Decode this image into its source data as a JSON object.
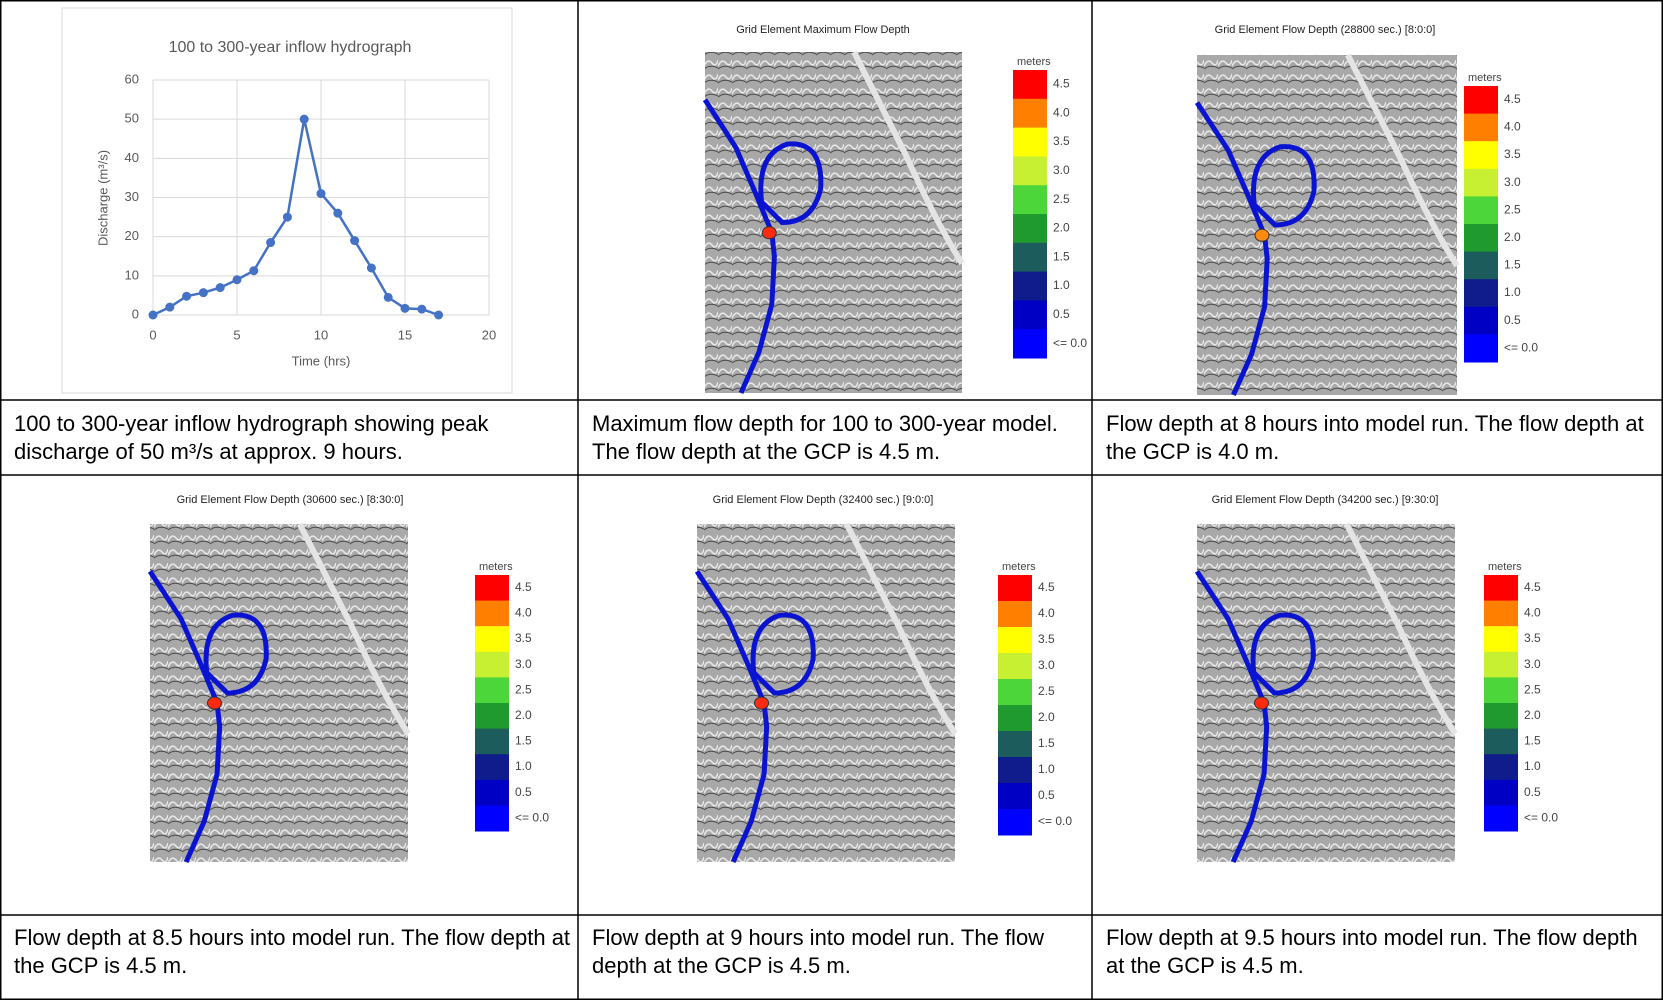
{
  "chart_data": {
    "type": "line",
    "title": "100 to 300-year inflow hydrograph",
    "x_label": "Time (hrs)",
    "y_label": "Discharge (m³/s)",
    "x": [
      0,
      1,
      2,
      3,
      4,
      5,
      6,
      7,
      8,
      9,
      10,
      11,
      12,
      13,
      14,
      15,
      16,
      17
    ],
    "values": [
      0,
      2,
      4.8,
      5.7,
      7,
      9,
      11.3,
      18.5,
      25,
      50,
      31,
      26,
      19,
      12,
      4.5,
      1.7,
      1.5,
      0
    ],
    "color": "#4472c4",
    "xlim": [
      0,
      20
    ],
    "xticks": [
      0,
      5,
      10,
      15,
      20
    ],
    "ylim": [
      0,
      60
    ],
    "yticks": [
      0,
      10,
      20,
      30,
      40,
      50,
      60
    ],
    "grid": true
  },
  "legend": {
    "unit": "meters",
    "labels": [
      "4.5",
      "4.0",
      "3.5",
      "3.0",
      "2.5",
      "2.0",
      "1.5",
      "1.0",
      "0.5",
      "<= 0.0"
    ],
    "colors": [
      "#ff0000",
      "#ff8000",
      "#ffff00",
      "#c8f032",
      "#4cd63a",
      "#1f9a2e",
      "#1c5c5c",
      "#101c8c",
      "#0000c4",
      "#0000ff"
    ]
  },
  "panels": [
    {
      "title": "Grid Element Maximum Flow Depth"
    },
    {
      "title": "Grid Element Flow Depth (28800 sec.) [8:0:0]"
    },
    {
      "title": "Grid Element Flow Depth (30600 sec.) [8:30:0]"
    },
    {
      "title": "Grid Element Flow Depth (32400 sec.) [9:0:0]"
    },
    {
      "title": "Grid Element Flow Depth (34200 sec.) [9:30:0]"
    }
  ],
  "captions": [
    "100 to 300-year inflow hydrograph showing peak discharge of 50 m³/s at approx. 9 hours.",
    "Maximum flow depth for 100 to 300-year model. The flow depth at the GCP is 4.5 m.",
    "Flow depth at 8 hours into model run. The flow depth at the GCP is 4.0 m.",
    "Flow depth at 8.5 hours into model run. The flow depth at the GCP is 4.5 m.",
    "Flow depth at 9 hours into model run. The flow depth at the GCP is 4.5 m.",
    "Flow depth at 9.5 hours into model run. The flow depth at the GCP is 4.5 m."
  ]
}
